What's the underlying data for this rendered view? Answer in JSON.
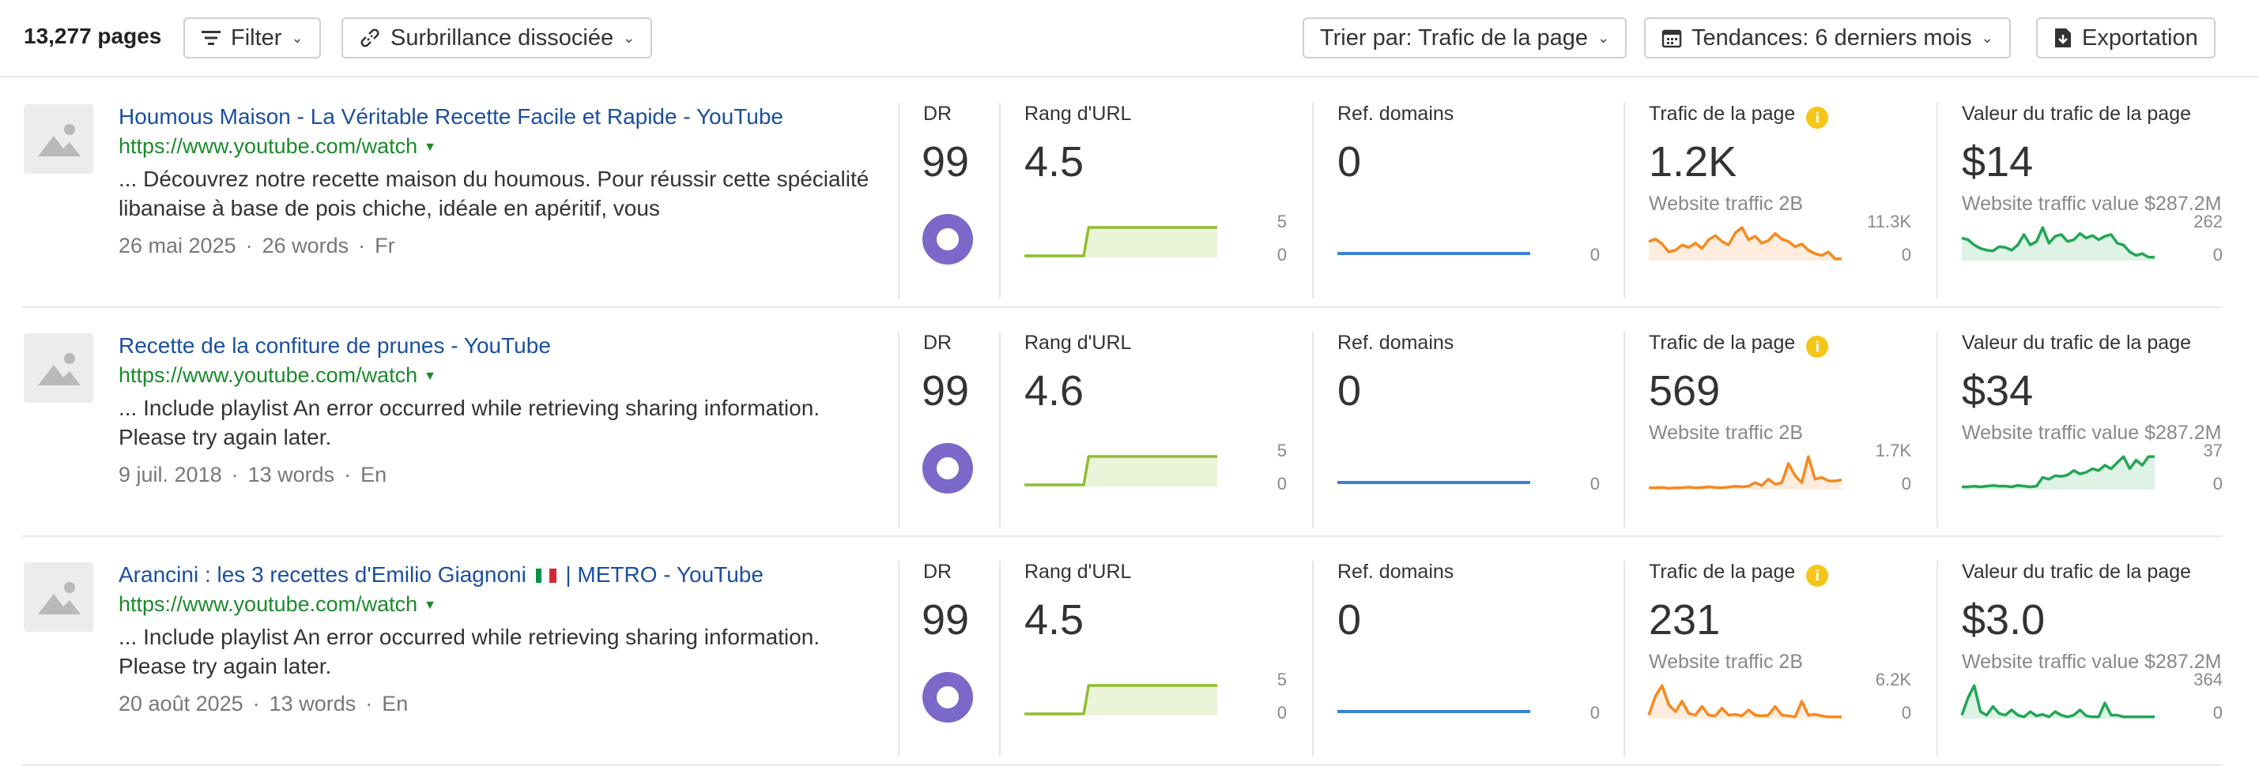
{
  "toolbar": {
    "count": "13,277 pages",
    "filter_label": "Filter",
    "highlight_label": "Surbrillance dissociée",
    "sort_label": "Trier par: Trafic de la page",
    "trends_label": "Tendances: 6 derniers mois",
    "export_label": "Exportation"
  },
  "labels": {
    "dr": "DR",
    "url_rank": "Rang d'URL",
    "ref_domains": "Ref. domains",
    "traffic": "Trafic de la page",
    "traffic_value": "Valeur du trafic de la page"
  },
  "colors": {
    "link": "#1b4fa0",
    "url": "#1a8a2b",
    "dr_ring": "#7b68c8",
    "rank_line": "#8fbe2f",
    "ref_line": "#3b82d6",
    "traffic_line": "#f5891f",
    "value_line": "#22a655",
    "info": "#f5c518"
  },
  "rows": [
    {
      "title": "Houmous Maison - La Véritable Recette Facile et Rapide - YouTube",
      "url": "https://www.youtube.com/watch",
      "snippet": "... Découvrez notre recette maison du houmous. Pour réussir cette spécialité libanaise à base de pois chiche, idéale en apéritif, vous",
      "date": "26 mai 2025",
      "words": "26 words",
      "lang": "Fr",
      "dr": "99",
      "url_rank": "4.5",
      "rank_max": "5",
      "rank_min": "0",
      "rank_series": [
        0.05,
        0.05,
        0.05,
        0.05,
        0.05,
        0.05,
        0.05,
        0.05,
        0.05,
        0.05,
        0.05,
        0.05,
        0.05,
        0.95,
        0.95,
        0.95,
        0.95,
        0.95,
        0.95,
        0.95,
        0.95,
        0.95,
        0.95,
        0.95,
        0.95,
        0.95,
        0.95,
        0.95,
        0.95,
        0.95,
        0.95,
        0.95,
        0.95,
        0.95,
        0.95,
        0.95,
        0.95,
        0.95,
        0.95,
        0.95
      ],
      "ref_domains": "0",
      "ref_min": "0",
      "traffic": "1.2K",
      "traffic_sub": "Website traffic 2B",
      "traffic_max": "11.3K",
      "traffic_min": "0",
      "traffic_series": [
        0.55,
        0.62,
        0.48,
        0.25,
        0.3,
        0.45,
        0.38,
        0.5,
        0.35,
        0.6,
        0.72,
        0.55,
        0.45,
        0.8,
        0.95,
        0.6,
        0.7,
        0.5,
        0.58,
        0.78,
        0.62,
        0.55,
        0.4,
        0.48,
        0.3,
        0.2,
        0.15,
        0.25,
        0.05,
        0.05
      ],
      "traffic_value": "$14",
      "value_sub": "Website traffic value $287.2M",
      "value_max": "262",
      "value_min": "0",
      "value_series": [
        0.65,
        0.6,
        0.45,
        0.35,
        0.3,
        0.28,
        0.4,
        0.38,
        0.3,
        0.45,
        0.75,
        0.45,
        0.55,
        0.95,
        0.5,
        0.7,
        0.75,
        0.55,
        0.6,
        0.78,
        0.65,
        0.72,
        0.6,
        0.7,
        0.75,
        0.5,
        0.45,
        0.25,
        0.15,
        0.2,
        0.1,
        0.1
      ]
    },
    {
      "title": "Recette de la confiture de prunes - YouTube",
      "url": "https://www.youtube.com/watch",
      "snippet": "... Include playlist An error occurred while retrieving sharing information. Please try again later.",
      "date": "9 juil. 2018",
      "words": "13 words",
      "lang": "En",
      "dr": "99",
      "url_rank": "4.6",
      "rank_max": "5",
      "rank_min": "0",
      "rank_series": [
        0.05,
        0.05,
        0.05,
        0.05,
        0.05,
        0.05,
        0.05,
        0.05,
        0.05,
        0.05,
        0.05,
        0.05,
        0.05,
        0.95,
        0.95,
        0.95,
        0.95,
        0.95,
        0.95,
        0.95,
        0.95,
        0.95,
        0.95,
        0.95,
        0.95,
        0.95,
        0.95,
        0.95,
        0.95,
        0.95,
        0.95,
        0.95,
        0.95,
        0.95,
        0.95,
        0.95,
        0.95,
        0.95,
        0.95,
        0.95
      ],
      "ref_domains": "0",
      "ref_min": "0",
      "traffic": "569",
      "traffic_sub": "Website traffic 2B",
      "traffic_max": "1.7K",
      "traffic_min": "0",
      "traffic_series": [
        0.05,
        0.05,
        0.06,
        0.04,
        0.05,
        0.05,
        0.07,
        0.05,
        0.06,
        0.08,
        0.06,
        0.05,
        0.07,
        0.1,
        0.08,
        0.1,
        0.2,
        0.12,
        0.3,
        0.15,
        0.2,
        0.75,
        0.4,
        0.2,
        0.95,
        0.3,
        0.35,
        0.25,
        0.25,
        0.28
      ],
      "traffic_value": "$34",
      "value_sub": "Website traffic value $287.2M",
      "value_max": "37",
      "value_min": "0",
      "value_series": [
        0.08,
        0.08,
        0.1,
        0.08,
        0.1,
        0.12,
        0.1,
        0.1,
        0.08,
        0.12,
        0.1,
        0.08,
        0.1,
        0.35,
        0.3,
        0.4,
        0.38,
        0.42,
        0.55,
        0.45,
        0.5,
        0.6,
        0.55,
        0.7,
        0.6,
        0.78,
        0.95,
        0.6,
        0.85,
        0.7,
        0.95,
        0.95
      ]
    },
    {
      "title": "Arancini : les 3 recettes d'Emilio Giagnoni",
      "title_after_flag": "| METRO - YouTube",
      "url": "https://www.youtube.com/watch",
      "snippet": "... Include playlist An error occurred while retrieving sharing information. Please try again later.",
      "date": "20 août 2025",
      "words": "13 words",
      "lang": "En",
      "dr": "99",
      "url_rank": "4.5",
      "rank_max": "5",
      "rank_min": "0",
      "rank_series": [
        0.05,
        0.05,
        0.05,
        0.05,
        0.05,
        0.05,
        0.05,
        0.05,
        0.05,
        0.05,
        0.05,
        0.05,
        0.05,
        0.95,
        0.95,
        0.95,
        0.95,
        0.95,
        0.95,
        0.95,
        0.95,
        0.95,
        0.95,
        0.95,
        0.95,
        0.95,
        0.95,
        0.95,
        0.95,
        0.95,
        0.95,
        0.95,
        0.95,
        0.95,
        0.95,
        0.95,
        0.95,
        0.95,
        0.95,
        0.95
      ],
      "ref_domains": "0",
      "ref_min": "0",
      "traffic": "231",
      "traffic_sub": "Website traffic 2B",
      "traffic_max": "6.2K",
      "traffic_min": "0",
      "traffic_series": [
        0.1,
        0.65,
        0.95,
        0.4,
        0.2,
        0.5,
        0.15,
        0.1,
        0.35,
        0.1,
        0.08,
        0.3,
        0.1,
        0.12,
        0.08,
        0.25,
        0.1,
        0.08,
        0.1,
        0.35,
        0.1,
        0.08,
        0.05,
        0.5,
        0.1,
        0.12,
        0.08,
        0.05,
        0.05,
        0.05
      ],
      "traffic_value": "$3.0",
      "value_sub": "Website traffic value $287.2M",
      "value_max": "364",
      "value_min": "0",
      "value_series": [
        0.1,
        0.6,
        0.95,
        0.2,
        0.1,
        0.35,
        0.15,
        0.1,
        0.25,
        0.1,
        0.05,
        0.2,
        0.08,
        0.12,
        0.05,
        0.2,
        0.1,
        0.05,
        0.1,
        0.25,
        0.08,
        0.05,
        0.05,
        0.45,
        0.1,
        0.1,
        0.05,
        0.05,
        0.05,
        0.05,
        0.05,
        0.05
      ]
    }
  ]
}
